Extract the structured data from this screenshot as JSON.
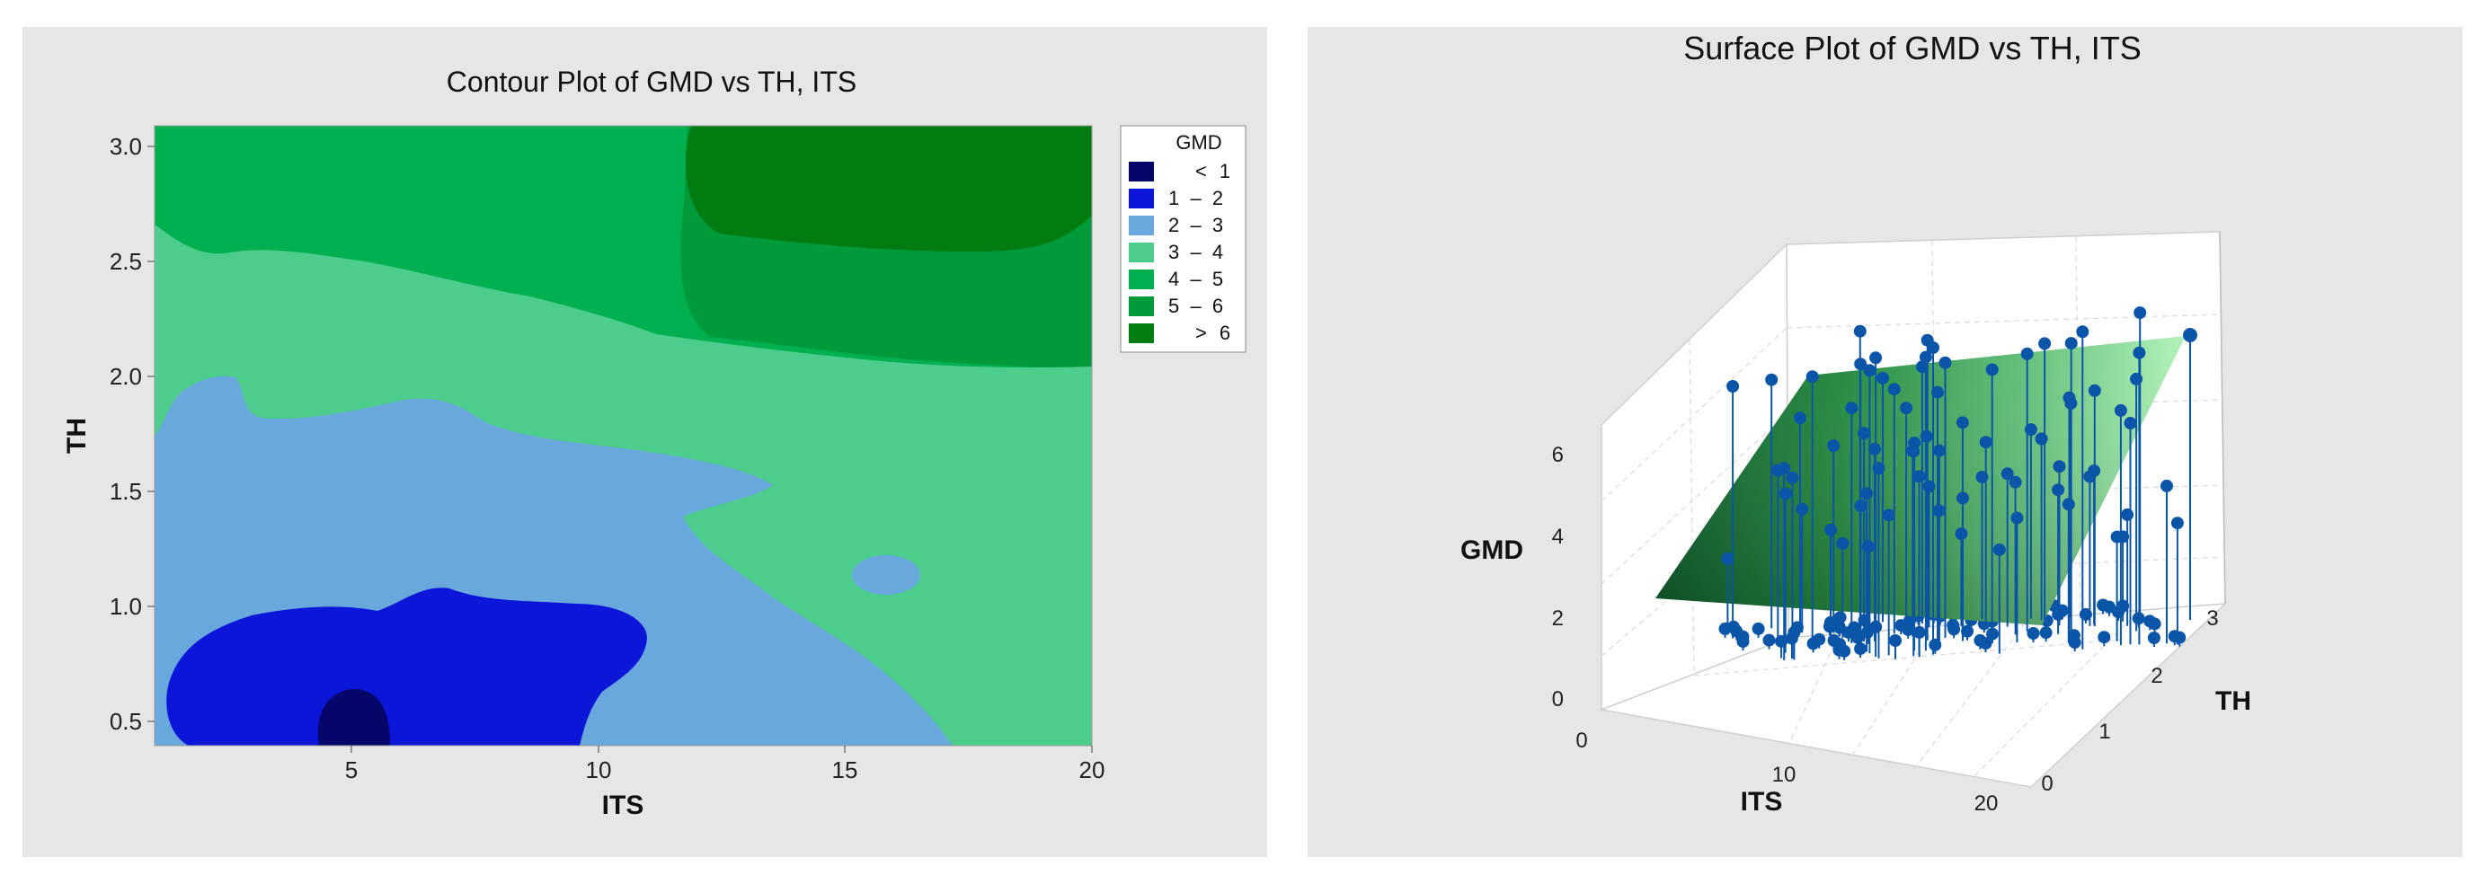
{
  "colors": {
    "panel_bg": "#e6e6e6",
    "c_lt1": "#06066a",
    "c_1_2": "#0c16d8",
    "c_2_3": "#68a8dc",
    "c_3_4": "#4ccd8c",
    "c_4_5": "#00b050",
    "c_5_6": "#009a3a",
    "c_gt6": "#007c10",
    "stem": "#0a55a8",
    "surface_light": "#b3f2b9",
    "surface_dark": "#005a2a"
  },
  "chart_data": [
    {
      "type": "contour",
      "title": "Contour Plot of GMD vs TH, ITS",
      "xlabel": "ITS",
      "ylabel": "TH",
      "xlim": [
        1,
        20
      ],
      "ylim": [
        0.4,
        3.1
      ],
      "x_ticks": [
        "5",
        "10",
        "15",
        "20"
      ],
      "y_ticks": [
        "0.5",
        "1.0",
        "1.5",
        "2.0",
        "2.5",
        "3.0"
      ],
      "legend": {
        "title": "GMD",
        "position": "right",
        "entries": [
          {
            "label": "<",
            "value": "1",
            "color_key": "c_lt1"
          },
          {
            "label": "1  –  2",
            "value": "",
            "color_key": "c_1_2"
          },
          {
            "label": "2  –  3",
            "value": "",
            "color_key": "c_2_3"
          },
          {
            "label": "3  –  4",
            "value": "",
            "color_key": "c_3_4"
          },
          {
            "label": "4  –  5",
            "value": "",
            "color_key": "c_4_5"
          },
          {
            "label": "5  –  6",
            "value": "",
            "color_key": "c_5_6"
          },
          {
            "label": ">",
            "value": "6",
            "color_key": "c_gt6"
          }
        ]
      }
    },
    {
      "type": "surface",
      "title": "Surface Plot of GMD vs TH, ITS",
      "xlabel": "ITS",
      "ylabel": "TH",
      "zlabel": "GMD",
      "x_ticks": [
        "0",
        "10",
        "20"
      ],
      "y_ticks": [
        "0",
        "1",
        "2",
        "3"
      ],
      "z_ticks": [
        "0",
        "2",
        "4",
        "6"
      ]
    }
  ]
}
